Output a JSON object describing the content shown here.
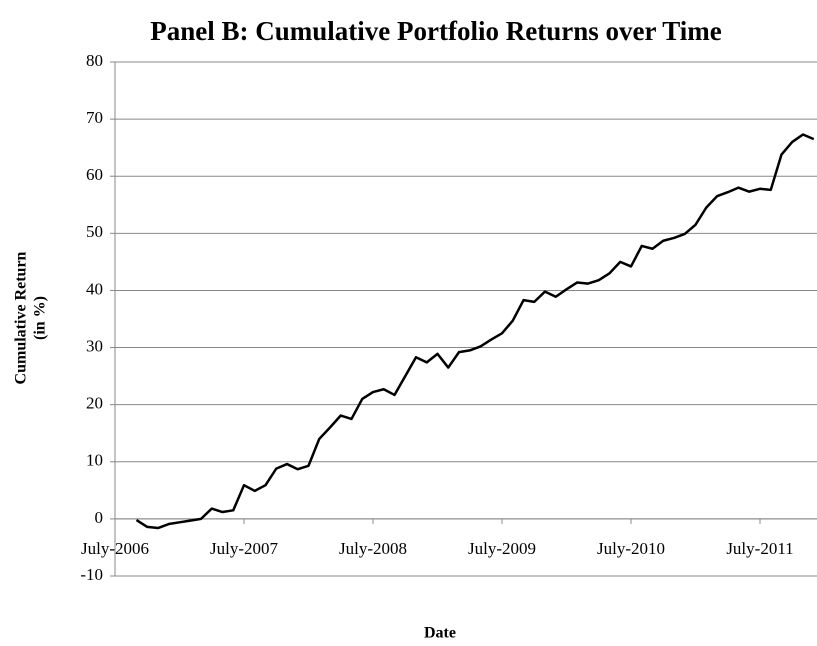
{
  "chart_data": {
    "type": "line",
    "title": "Panel B: Cumulative Portfolio Returns over Time",
    "xlabel": "Date",
    "ylabel": [
      "Cumulative Return",
      "(in %)"
    ],
    "categories": [
      "July-2006",
      null,
      null,
      null,
      null,
      null,
      null,
      null,
      null,
      null,
      null,
      null,
      "July-2007",
      null,
      null,
      null,
      null,
      null,
      null,
      null,
      null,
      null,
      null,
      null,
      "July-2008",
      null,
      null,
      null,
      null,
      null,
      null,
      null,
      null,
      null,
      null,
      null,
      "July-2009",
      null,
      null,
      null,
      null,
      null,
      null,
      null,
      null,
      null,
      null,
      null,
      "July-2010",
      null,
      null,
      null,
      null,
      null,
      null,
      null,
      null,
      null,
      null,
      null,
      "July-2011",
      null,
      null,
      null,
      null,
      null
    ],
    "values": [
      null,
      null,
      -0.2,
      -1.4,
      -1.6,
      -0.9,
      -0.6,
      -0.3,
      0,
      1.8,
      1.2,
      1.5,
      5.9,
      4.9,
      5.9,
      8.8,
      9.6,
      8.7,
      9.3,
      14,
      16,
      18.1,
      17.5,
      21,
      22.2,
      22.7,
      21.7,
      25,
      28.3,
      27.4,
      28.9,
      26.5,
      29.2,
      29.5,
      30.2,
      31.4,
      32.5,
      34.7,
      38.3,
      38,
      39.8,
      38.9,
      40.2,
      41.4,
      41.2,
      41.8,
      43,
      45,
      44.2,
      47.8,
      47.3,
      48.7,
      49.2,
      49.9,
      51.5,
      54.5,
      56.5,
      57.2,
      58,
      57.3,
      57.8,
      57.6,
      63.8,
      66,
      67.3,
      66.5
    ],
    "color": "#000000",
    "ylim": [
      -10,
      80
    ],
    "yticks": [
      -10,
      0,
      10,
      20,
      30,
      40,
      50,
      60,
      70,
      80
    ],
    "grid": true
  }
}
